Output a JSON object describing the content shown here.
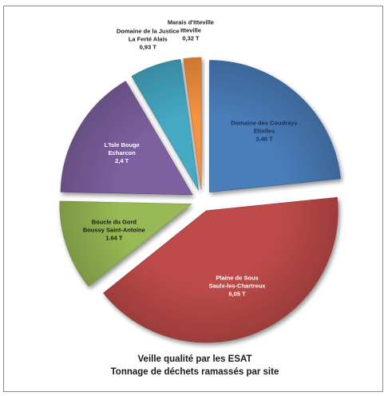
{
  "chart_data": {
    "type": "pie",
    "title": "Veille qualité par les ESAT",
    "subtitle": "Tonnage de déchets ramassés par site",
    "slices": [
      {
        "label": [
          "Domaine des Coudrays",
          "Etiolles"
        ],
        "value_label": "3,46 T",
        "value": 3.46,
        "color": "#4a7ebb",
        "text_color": "#1f2f4f"
      },
      {
        "label": [
          "Plaine de Sous",
          "Saulx-les-Chartreux"
        ],
        "value_label": "6,05 T",
        "value": 6.05,
        "color": "#be4b48",
        "text_color": "#ffffff"
      },
      {
        "label": [
          "Boucle du Gord",
          "Boussy Saint-Antoine"
        ],
        "value_label": "1.64 T",
        "value": 1.64,
        "color": "#98b954",
        "text_color": "#1a1a1a"
      },
      {
        "label": [
          "L'Isle Bouge",
          "Echarcon"
        ],
        "value_label": "2,4 T",
        "value": 2.4,
        "color": "#7d60a0",
        "text_color": "#ffffff"
      },
      {
        "label": [
          "Domaine de la Justice",
          "La Ferté Alais"
        ],
        "value_label": "0,93 T",
        "value": 0.93,
        "color": "#46aac5",
        "text_color": "#1a1a1a"
      },
      {
        "label": [
          "Marais d'Itteville",
          "Itteville"
        ],
        "value_label": "0,32 T",
        "value": 0.32,
        "color": "#f69240",
        "text_color": "#1a1a1a"
      }
    ]
  }
}
